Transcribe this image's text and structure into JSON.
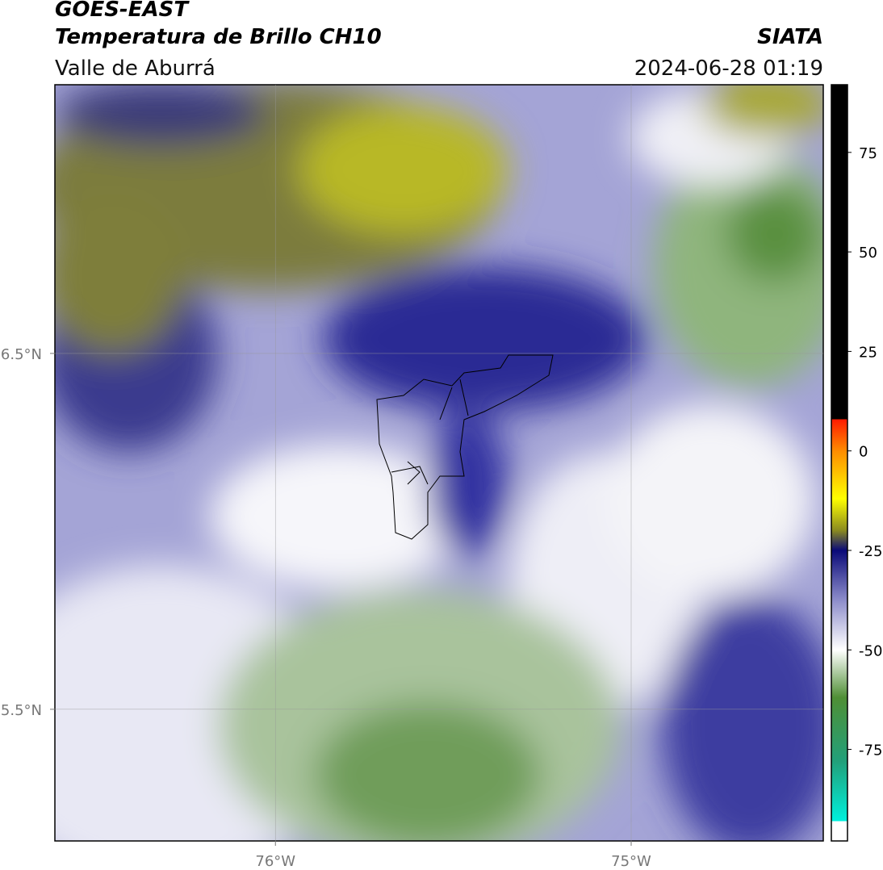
{
  "header": {
    "title": "GOES-EAST",
    "product": "Temperatura de Brillo CH10",
    "region": "Valle de Aburrá",
    "source": "SIATA",
    "datetime": "2024-06-28 01:19"
  },
  "map": {
    "xlim": [
      -76.62,
      -74.46
    ],
    "ylim": [
      5.13,
      7.255
    ],
    "xticks": [
      {
        "value": -76,
        "label": "76°W"
      },
      {
        "value": -75,
        "label": "75°W"
      }
    ],
    "yticks": [
      {
        "value": 6.5,
        "label": "6.5°N"
      },
      {
        "value": 5.5,
        "label": "5.5°N"
      }
    ],
    "grid": true
  },
  "colorbar": {
    "lim": [
      -98,
      92
    ],
    "ticks": [
      75,
      50,
      25,
      0,
      -25,
      -50,
      -75
    ],
    "colormap": [
      [
        92,
        "#000000"
      ],
      [
        8,
        "#000000"
      ],
      [
        8,
        "#ff1a00"
      ],
      [
        0,
        "#ff8c00"
      ],
      [
        -12,
        "#ffff00"
      ],
      [
        -20,
        "#8a8a20"
      ],
      [
        -25,
        "#0a0a78"
      ],
      [
        -37,
        "#8888c8"
      ],
      [
        -50,
        "#ffffff"
      ],
      [
        -62,
        "#4f8f35"
      ],
      [
        -78,
        "#22a07a"
      ],
      [
        -93,
        "#00f0dd"
      ],
      [
        -93,
        "#ffffff"
      ],
      [
        -98,
        "#ffffff"
      ]
    ]
  }
}
